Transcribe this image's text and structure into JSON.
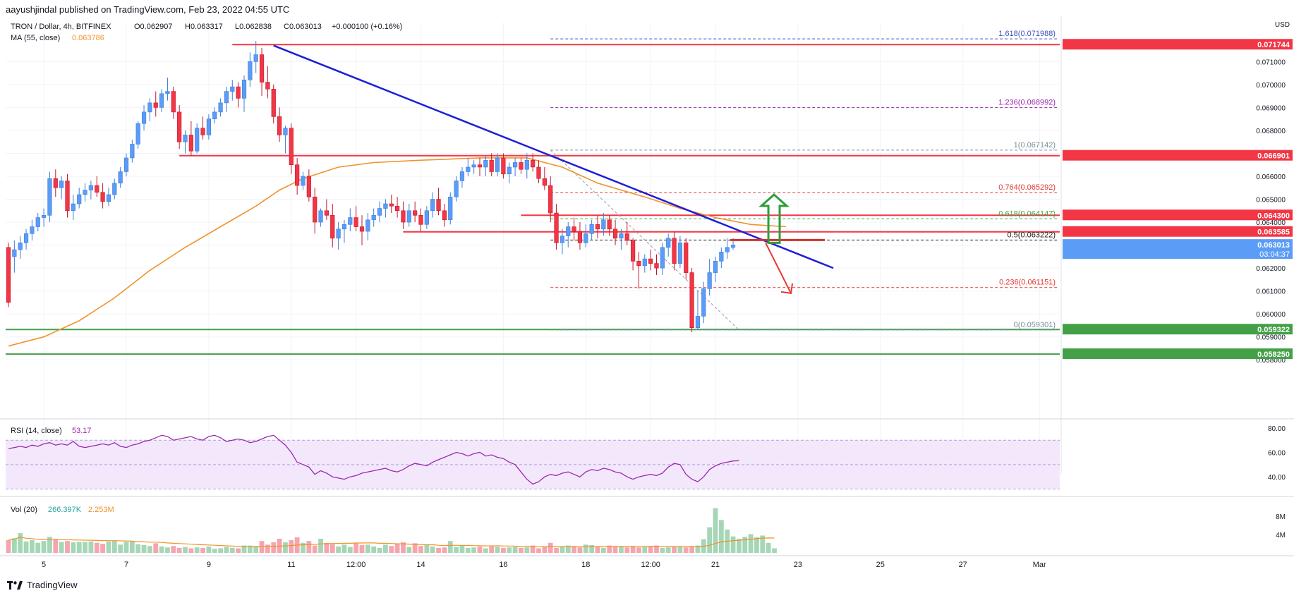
{
  "header": {
    "published_by": "aayushjindal published on TradingView.com, Feb 23, 2022 04:55 UTC"
  },
  "legend": {
    "symbol": "TRON / Dollar, 4h, BITFINEX",
    "open": "O0.062907",
    "high": "H0.063317",
    "low": "L0.062838",
    "close": "C0.063013",
    "change": "+0.000100 (+0.16%)",
    "ma_label": "MA (55, close)",
    "ma_value": "0.063786",
    "rsi_label": "RSI (14, close)",
    "rsi_value": "53.17",
    "vol_label": "Vol (20)",
    "vol_value1": "266.397K",
    "vol_value2": "2.253M"
  },
  "footer": {
    "brand": "TradingView"
  },
  "colors": {
    "up": "#5b9cf6",
    "down": "#f23645",
    "ma": "#f0932b",
    "trend": "#1e1ed6",
    "hline": "#f23645",
    "support": "#43a047",
    "rsi": "#9c27b0",
    "fib": "#d81b60"
  },
  "chart_data": {
    "type": "candlestick",
    "price_axis": {
      "unit": "USD",
      "ticks": [
        "0.071000",
        "0.070000",
        "0.069000",
        "0.068000",
        "0.067000",
        "0.066000",
        "0.065000",
        "0.064000",
        "0.063000",
        "0.062000",
        "0.061000",
        "0.060000",
        "0.059000",
        "0.058000"
      ],
      "range": [
        0.0577,
        0.0727
      ]
    },
    "x_labels": [
      {
        "label": "5",
        "i": 6
      },
      {
        "label": "7",
        "i": 20
      },
      {
        "label": "9",
        "i": 34
      },
      {
        "label": "11",
        "i": 48
      },
      {
        "label": "12:00",
        "i": 59
      },
      {
        "label": "14",
        "i": 70
      },
      {
        "label": "16",
        "i": 84
      },
      {
        "label": "18",
        "i": 98
      },
      {
        "label": "12:00",
        "i": 109
      },
      {
        "label": "21",
        "i": 120
      },
      {
        "label": "23",
        "i": 134
      },
      {
        "label": "25",
        "i": 148
      },
      {
        "label": "27",
        "i": 162
      },
      {
        "label": "Mar",
        "i": 175
      }
    ],
    "candles": [
      [
        0.0629,
        0.0631,
        0.0603,
        0.0605
      ],
      [
        0.0625,
        0.0632,
        0.0618,
        0.0628
      ],
      [
        0.0628,
        0.0634,
        0.0624,
        0.0631
      ],
      [
        0.0631,
        0.0637,
        0.0628,
        0.0635
      ],
      [
        0.0635,
        0.0641,
        0.0632,
        0.0638
      ],
      [
        0.0638,
        0.0644,
        0.0636,
        0.0642
      ],
      [
        0.0642,
        0.0646,
        0.0638,
        0.0643
      ],
      [
        0.0643,
        0.0662,
        0.064,
        0.0659
      ],
      [
        0.0659,
        0.0663,
        0.0651,
        0.0655
      ],
      [
        0.0655,
        0.066,
        0.065,
        0.0658
      ],
      [
        0.0658,
        0.0661,
        0.0642,
        0.0645
      ],
      [
        0.0645,
        0.0652,
        0.0641,
        0.0648
      ],
      [
        0.0648,
        0.0655,
        0.0646,
        0.0652
      ],
      [
        0.0652,
        0.0657,
        0.0649,
        0.0654
      ],
      [
        0.0654,
        0.0658,
        0.065,
        0.0656
      ],
      [
        0.0656,
        0.066,
        0.0651,
        0.0653
      ],
      [
        0.0653,
        0.0657,
        0.0646,
        0.0649
      ],
      [
        0.0649,
        0.0655,
        0.0647,
        0.0652
      ],
      [
        0.0652,
        0.0659,
        0.065,
        0.0657
      ],
      [
        0.0657,
        0.0664,
        0.0655,
        0.0662
      ],
      [
        0.0662,
        0.067,
        0.066,
        0.0668
      ],
      [
        0.0668,
        0.0676,
        0.0666,
        0.0674
      ],
      [
        0.0674,
        0.0684,
        0.0672,
        0.0683
      ],
      [
        0.0683,
        0.0691,
        0.068,
        0.0688
      ],
      [
        0.0688,
        0.0694,
        0.0684,
        0.0692
      ],
      [
        0.0692,
        0.0697,
        0.0686,
        0.069
      ],
      [
        0.069,
        0.0698,
        0.0688,
        0.0696
      ],
      [
        0.0696,
        0.0703,
        0.0693,
        0.0697
      ],
      [
        0.0697,
        0.0699,
        0.0685,
        0.0688
      ],
      [
        0.0688,
        0.0691,
        0.0672,
        0.0675
      ],
      [
        0.0675,
        0.068,
        0.067,
        0.0678
      ],
      [
        0.0678,
        0.0684,
        0.0669,
        0.0671
      ],
      [
        0.0671,
        0.0683,
        0.067,
        0.0681
      ],
      [
        0.0681,
        0.0686,
        0.0676,
        0.0678
      ],
      [
        0.0678,
        0.0687,
        0.0676,
        0.0685
      ],
      [
        0.0685,
        0.069,
        0.0683,
        0.0688
      ],
      [
        0.0688,
        0.0694,
        0.0686,
        0.0692
      ],
      [
        0.0692,
        0.0699,
        0.0688,
        0.0697
      ],
      [
        0.0697,
        0.0702,
        0.0693,
        0.0699
      ],
      [
        0.0699,
        0.0701,
        0.069,
        0.0694
      ],
      [
        0.0694,
        0.0704,
        0.0688,
        0.0702
      ],
      [
        0.0702,
        0.0714,
        0.0699,
        0.071
      ],
      [
        0.071,
        0.0719,
        0.0705,
        0.0713
      ],
      [
        0.0713,
        0.0716,
        0.0695,
        0.0701
      ],
      [
        0.0701,
        0.0708,
        0.0694,
        0.0698
      ],
      [
        0.0698,
        0.07,
        0.0683,
        0.0686
      ],
      [
        0.0686,
        0.069,
        0.0675,
        0.0678
      ],
      [
        0.0678,
        0.0682,
        0.067,
        0.0681
      ],
      [
        0.0681,
        0.0683,
        0.0661,
        0.0665
      ],
      [
        0.0665,
        0.0668,
        0.0652,
        0.0656
      ],
      [
        0.0656,
        0.0662,
        0.0654,
        0.066
      ],
      [
        0.066,
        0.0663,
        0.0649,
        0.0651
      ],
      [
        0.0651,
        0.0655,
        0.0635,
        0.064
      ],
      [
        0.064,
        0.0646,
        0.0638,
        0.0645
      ],
      [
        0.0645,
        0.065,
        0.0641,
        0.0643
      ],
      [
        0.0643,
        0.0648,
        0.0629,
        0.0633
      ],
      [
        0.0633,
        0.064,
        0.0628,
        0.0637
      ],
      [
        0.0637,
        0.0641,
        0.0631,
        0.0639
      ],
      [
        0.0639,
        0.0646,
        0.0636,
        0.0642
      ],
      [
        0.0642,
        0.0647,
        0.0636,
        0.0638
      ],
      [
        0.0638,
        0.0643,
        0.063,
        0.0636
      ],
      [
        0.0636,
        0.0644,
        0.0632,
        0.0641
      ],
      [
        0.0641,
        0.0646,
        0.0638,
        0.0643
      ],
      [
        0.0643,
        0.0649,
        0.064,
        0.0646
      ],
      [
        0.0646,
        0.065,
        0.0642,
        0.0648
      ],
      [
        0.0648,
        0.0652,
        0.0644,
        0.0647
      ],
      [
        0.0647,
        0.0651,
        0.0642,
        0.0645
      ],
      [
        0.0645,
        0.0649,
        0.0637,
        0.064
      ],
      [
        0.064,
        0.0648,
        0.0638,
        0.0645
      ],
      [
        0.0645,
        0.0649,
        0.064,
        0.0643
      ],
      [
        0.0643,
        0.0646,
        0.0636,
        0.0639
      ],
      [
        0.0639,
        0.0647,
        0.0637,
        0.0645
      ],
      [
        0.0645,
        0.0653,
        0.0642,
        0.065
      ],
      [
        0.065,
        0.0655,
        0.0643,
        0.0645
      ],
      [
        0.0645,
        0.0648,
        0.0638,
        0.0641
      ],
      [
        0.0641,
        0.0653,
        0.0639,
        0.0651
      ],
      [
        0.0651,
        0.066,
        0.0649,
        0.0658
      ],
      [
        0.0658,
        0.0664,
        0.0655,
        0.0662
      ],
      [
        0.0662,
        0.0668,
        0.066,
        0.0664
      ],
      [
        0.0664,
        0.0667,
        0.0661,
        0.0665
      ],
      [
        0.0665,
        0.0668,
        0.066,
        0.0664
      ],
      [
        0.0664,
        0.0669,
        0.066,
        0.0667
      ],
      [
        0.0667,
        0.067,
        0.066,
        0.0662
      ],
      [
        0.0662,
        0.067,
        0.066,
        0.0668
      ],
      [
        0.0668,
        0.067,
        0.0659,
        0.0661
      ],
      [
        0.0661,
        0.0666,
        0.0657,
        0.0664
      ],
      [
        0.0664,
        0.0668,
        0.066,
        0.0666
      ],
      [
        0.0666,
        0.0668,
        0.0661,
        0.0663
      ],
      [
        0.0663,
        0.067,
        0.0659,
        0.0667
      ],
      [
        0.0667,
        0.067,
        0.0662,
        0.0664
      ],
      [
        0.0664,
        0.0667,
        0.0657,
        0.0659
      ],
      [
        0.0659,
        0.0664,
        0.0654,
        0.0656
      ],
      [
        0.0656,
        0.066,
        0.064,
        0.0644
      ],
      [
        0.0644,
        0.0648,
        0.0628,
        0.0631
      ],
      [
        0.0631,
        0.0637,
        0.0626,
        0.0634
      ],
      [
        0.0634,
        0.064,
        0.0629,
        0.0638
      ],
      [
        0.0638,
        0.0642,
        0.0632,
        0.0636
      ],
      [
        0.0636,
        0.064,
        0.0628,
        0.0631
      ],
      [
        0.0631,
        0.0639,
        0.0629,
        0.0635
      ],
      [
        0.0635,
        0.0641,
        0.0632,
        0.0639
      ],
      [
        0.0639,
        0.0643,
        0.0633,
        0.0637
      ],
      [
        0.0637,
        0.0644,
        0.0634,
        0.0641
      ],
      [
        0.0641,
        0.0643,
        0.0634,
        0.0637
      ],
      [
        0.0637,
        0.0641,
        0.063,
        0.0633
      ],
      [
        0.0633,
        0.0637,
        0.0628,
        0.0635
      ],
      [
        0.0635,
        0.064,
        0.063,
        0.0632
      ],
      [
        0.0632,
        0.0633,
        0.0619,
        0.0623
      ],
      [
        0.0623,
        0.0627,
        0.0611,
        0.0621
      ],
      [
        0.0621,
        0.0626,
        0.0618,
        0.0624
      ],
      [
        0.0624,
        0.0628,
        0.0619,
        0.0622
      ],
      [
        0.0622,
        0.0626,
        0.0617,
        0.062
      ],
      [
        0.062,
        0.0631,
        0.0617,
        0.0629
      ],
      [
        0.0629,
        0.0635,
        0.0625,
        0.0633
      ],
      [
        0.0633,
        0.0636,
        0.0619,
        0.0622
      ],
      [
        0.0622,
        0.0634,
        0.062,
        0.0631
      ],
      [
        0.0631,
        0.0633,
        0.0615,
        0.0618
      ],
      [
        0.0618,
        0.062,
        0.0592,
        0.0594
      ],
      [
        0.0594,
        0.061,
        0.0593,
        0.0599
      ],
      [
        0.0599,
        0.0614,
        0.0596,
        0.0611
      ],
      [
        0.0611,
        0.0624,
        0.0608,
        0.0618
      ],
      [
        0.0618,
        0.0625,
        0.0614,
        0.0623
      ],
      [
        0.0623,
        0.0629,
        0.062,
        0.0627
      ],
      [
        0.0627,
        0.0633,
        0.0624,
        0.0629
      ],
      [
        0.0629,
        0.0633,
        0.0628,
        0.063
      ]
    ],
    "ma55": [
      [
        0,
        0.0586
      ],
      [
        6,
        0.059
      ],
      [
        12,
        0.0597
      ],
      [
        18,
        0.0607
      ],
      [
        24,
        0.0619
      ],
      [
        30,
        0.0629
      ],
      [
        36,
        0.0638
      ],
      [
        42,
        0.0647
      ],
      [
        46,
        0.0654
      ],
      [
        50,
        0.0659
      ],
      [
        56,
        0.0664
      ],
      [
        62,
        0.0666
      ],
      [
        70,
        0.0667
      ],
      [
        80,
        0.0668
      ],
      [
        88,
        0.0668
      ],
      [
        94,
        0.0664
      ],
      [
        100,
        0.0657
      ],
      [
        108,
        0.0651
      ],
      [
        114,
        0.0646
      ],
      [
        120,
        0.0642
      ],
      [
        126,
        0.0639
      ],
      [
        132,
        0.0638
      ]
    ],
    "horizontal_levels": [
      {
        "price": 0.07174,
        "label": "0.071744",
        "from": 38
      },
      {
        "price": 0.0669,
        "label": "0.066901",
        "from": 29
      },
      {
        "price": 0.0643,
        "label": "0.064300",
        "from": 87
      },
      {
        "price": 0.06358,
        "label": "0.063585",
        "from": 67
      }
    ],
    "support_levels": [
      {
        "price": 0.059322,
        "label": "0.059322"
      },
      {
        "price": 0.05825,
        "label": "0.058250"
      }
    ],
    "current_price": {
      "label": "0.063013",
      "countdown": "03:04:37"
    },
    "fib_levels": [
      {
        "ratio": "1.618",
        "price": 0.071988,
        "label": "1.618(0.071988)",
        "color": "#3f51b5"
      },
      {
        "ratio": "1.236",
        "price": 0.068992,
        "label": "1.236(0.068992)",
        "color": "#9c27b0"
      },
      {
        "ratio": "1",
        "price": 0.067142,
        "label": "1(0.067142)",
        "color": "#78909c"
      },
      {
        "ratio": "0.764",
        "price": 0.065292,
        "label": "0.764(0.065292)",
        "color": "#e53935"
      },
      {
        "ratio": "0.618",
        "price": 0.064147,
        "label": "0.618(0.064147)",
        "color": "#43a047"
      },
      {
        "ratio": "0.5",
        "price": 0.063222,
        "label": "0.5(0.063222)",
        "color": "#212121"
      },
      {
        "ratio": "0.236",
        "price": 0.061151,
        "label": "0.236(0.061151)",
        "color": "#e53935"
      },
      {
        "ratio": "0",
        "price": 0.059301,
        "label": "0(0.059301)",
        "color": "#78909c"
      }
    ],
    "trendline": [
      [
        45,
        0.0717
      ],
      [
        140,
        0.062
      ]
    ],
    "rsi": {
      "ticks": [
        "80.00",
        "60.00",
        "40.00"
      ],
      "values": [
        63,
        64,
        65,
        64,
        66,
        65,
        67,
        68,
        66,
        67,
        66,
        69,
        65,
        64,
        65,
        66,
        67,
        66,
        68,
        65,
        64,
        66,
        67,
        69,
        70,
        72,
        74,
        73,
        70,
        71,
        72,
        73,
        71,
        70,
        73,
        74,
        72,
        69,
        70,
        71,
        70,
        68,
        69,
        71,
        73,
        74,
        70,
        66,
        60,
        52,
        50,
        48,
        42,
        45,
        43,
        40,
        39,
        38,
        40,
        41,
        43,
        44,
        45,
        46,
        47,
        45,
        44,
        46,
        49,
        51,
        50,
        49,
        52,
        54,
        56,
        58,
        60,
        59,
        57,
        59,
        60,
        57,
        58,
        56,
        55,
        52,
        50,
        44,
        38,
        34,
        36,
        40,
        42,
        41,
        43,
        44,
        42,
        40,
        44,
        46,
        45,
        47,
        46,
        44,
        43,
        40,
        38,
        40,
        41,
        42,
        41,
        43,
        48,
        51,
        50,
        42,
        38,
        36,
        40,
        46,
        49,
        51,
        52,
        53,
        53.2
      ]
    },
    "volume": {
      "ticks": [
        "8M",
        "4M"
      ],
      "values": [
        2.8,
        3.2,
        4.3,
        2.5,
        2.8,
        2.2,
        2.6,
        3.5,
        2.9,
        2.4,
        2.6,
        2.3,
        2.4,
        2.4,
        2.5,
        2.2,
        2.0,
        2.5,
        2.6,
        1.8,
        2.4,
        2.6,
        1.9,
        1.7,
        1.5,
        2.1,
        1.4,
        1.2,
        1.5,
        1.1,
        1.3,
        1.0,
        1.2,
        1.1,
        1.4,
        0.9,
        1.0,
        1.3,
        1.1,
        1.0,
        1.6,
        1.6,
        1.5,
        2.6,
        1.8,
        2.3,
        3.1,
        2.3,
        2.8,
        3.4,
        2.2,
        2.6,
        1.6,
        3.1,
        2.2,
        1.9,
        1.4,
        1.8,
        1.3,
        2.1,
        1.7,
        1.8,
        1.4,
        1.1,
        1.8,
        1.5,
        1.9,
        2.3,
        1.3,
        2.1,
        1.5,
        1.8,
        1.4,
        1.1,
        1.2,
        2.6,
        1.3,
        1.7,
        1.1,
        1.2,
        1.4,
        1.0,
        1.4,
        1.3,
        1.1,
        1.2,
        1.3,
        1.1,
        1.2,
        1.6,
        1.0,
        1.4,
        2.2,
        1.1,
        1.4,
        1.6,
        1.5,
        1.2,
        1.8,
        1.7,
        1.4,
        1.1,
        1.6,
        1.3,
        1.4,
        1.2,
        1.5,
        1.2,
        1.3,
        1.5,
        1.6,
        1.1,
        1.2,
        1.3,
        1.4,
        1.2,
        1.5,
        1.6,
        3.0,
        5.6,
        9.8,
        7.2,
        5.1,
        3.6,
        3.1,
        3.5,
        4.1,
        3.4,
        3.8,
        2.2,
        1.0
      ]
    }
  }
}
